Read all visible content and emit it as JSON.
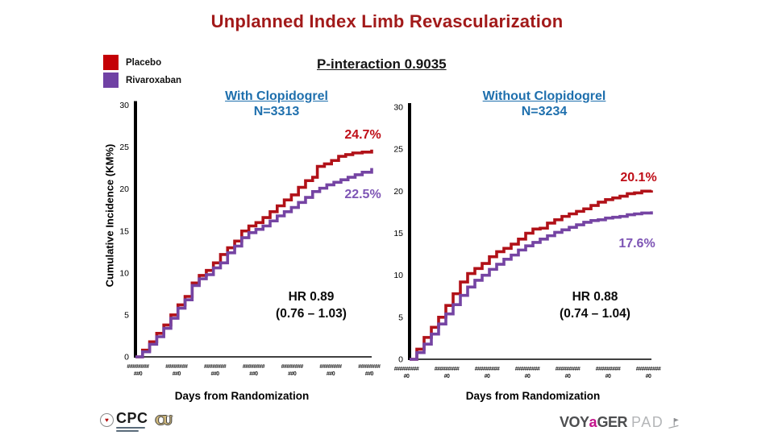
{
  "slide": {
    "title": "Unplanned Index Limb Revascularization",
    "p_interaction": "P-interaction 0.9035"
  },
  "legend": {
    "items": [
      {
        "label": "Placebo",
        "color": "#C40006"
      },
      {
        "label": "Rivaroxaban",
        "color": "#7041A4"
      }
    ]
  },
  "chart_data": [
    {
      "type": "line",
      "title": "With Clopidogrel",
      "subtitle": "N=3313",
      "xlabel": "Days from Randomization",
      "ylabel": "Cumulative Incidence (KM%)",
      "ylim": [
        0,
        30
      ],
      "yticks": [
        0,
        5,
        10,
        15,
        20,
        25,
        30
      ],
      "xticks_placeholder": {
        "count": 7,
        "line1": "########",
        "line2": "##0"
      },
      "x_note": "x tick labels render as number-format placeholders; x values below are relative 0-1 positions along the axis",
      "hr_line1": "HR 0.89",
      "hr_line2": "(0.76 – 1.03)",
      "series": [
        {
          "name": "Placebo",
          "color": "#B11118",
          "end_label": "24.7%",
          "points": [
            [
              0,
              0
            ],
            [
              0.03,
              0.8
            ],
            [
              0.06,
              1.8
            ],
            [
              0.09,
              2.8
            ],
            [
              0.12,
              3.8
            ],
            [
              0.15,
              5.0
            ],
            [
              0.18,
              6.2
            ],
            [
              0.21,
              7.2
            ],
            [
              0.24,
              8.8
            ],
            [
              0.27,
              9.7
            ],
            [
              0.3,
              10.3
            ],
            [
              0.33,
              11.2
            ],
            [
              0.36,
              12.2
            ],
            [
              0.39,
              13.0
            ],
            [
              0.42,
              13.8
            ],
            [
              0.45,
              15.0
            ],
            [
              0.48,
              15.6
            ],
            [
              0.51,
              16.0
            ],
            [
              0.54,
              16.6
            ],
            [
              0.57,
              17.3
            ],
            [
              0.6,
              18.0
            ],
            [
              0.63,
              18.7
            ],
            [
              0.66,
              19.3
            ],
            [
              0.69,
              20.2
            ],
            [
              0.72,
              21.0
            ],
            [
              0.75,
              21.4
            ],
            [
              0.77,
              22.7
            ],
            [
              0.8,
              23.0
            ],
            [
              0.83,
              23.4
            ],
            [
              0.86,
              23.9
            ],
            [
              0.89,
              24.1
            ],
            [
              0.92,
              24.3
            ],
            [
              0.96,
              24.4
            ],
            [
              1.0,
              24.7
            ]
          ]
        },
        {
          "name": "Rivaroxaban",
          "color": "#7544A3",
          "end_label": "22.5%",
          "points": [
            [
              0,
              0
            ],
            [
              0.03,
              0.6
            ],
            [
              0.06,
              1.5
            ],
            [
              0.09,
              2.4
            ],
            [
              0.12,
              3.4
            ],
            [
              0.15,
              4.6
            ],
            [
              0.18,
              5.8
            ],
            [
              0.21,
              6.8
            ],
            [
              0.24,
              8.5
            ],
            [
              0.27,
              9.3
            ],
            [
              0.3,
              9.8
            ],
            [
              0.33,
              10.6
            ],
            [
              0.36,
              11.2
            ],
            [
              0.39,
              12.4
            ],
            [
              0.42,
              13.2
            ],
            [
              0.45,
              14.2
            ],
            [
              0.48,
              14.8
            ],
            [
              0.51,
              15.2
            ],
            [
              0.54,
              15.6
            ],
            [
              0.57,
              16.2
            ],
            [
              0.6,
              16.8
            ],
            [
              0.63,
              17.3
            ],
            [
              0.66,
              17.8
            ],
            [
              0.69,
              18.4
            ],
            [
              0.72,
              19.0
            ],
            [
              0.75,
              19.7
            ],
            [
              0.78,
              20.1
            ],
            [
              0.81,
              20.5
            ],
            [
              0.84,
              20.8
            ],
            [
              0.87,
              21.1
            ],
            [
              0.9,
              21.4
            ],
            [
              0.93,
              21.7
            ],
            [
              0.96,
              22.0
            ],
            [
              1.0,
              22.5
            ]
          ]
        }
      ]
    },
    {
      "type": "line",
      "title": "Without Clopidogrel",
      "subtitle": "N=3234",
      "xlabel": "Days from Randomization",
      "ylabel": "Cumulative Incidence (KM%)",
      "ylim": [
        0,
        30
      ],
      "yticks": [
        0,
        5,
        10,
        15,
        20,
        25,
        30
      ],
      "xticks_placeholder": {
        "count": 7,
        "line1": "#########",
        "line2": "#0"
      },
      "x_note": "x tick labels render as number-format placeholders; x values below are relative 0-1 positions along the axis",
      "hr_line1": "HR 0.88",
      "hr_line2": "(0.74 – 1.04)",
      "series": [
        {
          "name": "Placebo",
          "color": "#B11118",
          "end_label": "20.1%",
          "points": [
            [
              0,
              0
            ],
            [
              0.03,
              1.2
            ],
            [
              0.06,
              2.6
            ],
            [
              0.09,
              3.8
            ],
            [
              0.12,
              5.0
            ],
            [
              0.15,
              6.4
            ],
            [
              0.18,
              7.8
            ],
            [
              0.21,
              9.2
            ],
            [
              0.24,
              10.2
            ],
            [
              0.27,
              10.8
            ],
            [
              0.3,
              11.4
            ],
            [
              0.33,
              12.2
            ],
            [
              0.36,
              12.8
            ],
            [
              0.39,
              13.2
            ],
            [
              0.42,
              13.7
            ],
            [
              0.45,
              14.3
            ],
            [
              0.48,
              15.0
            ],
            [
              0.51,
              15.5
            ],
            [
              0.54,
              15.6
            ],
            [
              0.57,
              16.2
            ],
            [
              0.6,
              16.6
            ],
            [
              0.63,
              17.0
            ],
            [
              0.66,
              17.3
            ],
            [
              0.69,
              17.6
            ],
            [
              0.72,
              17.9
            ],
            [
              0.75,
              18.3
            ],
            [
              0.78,
              18.7
            ],
            [
              0.81,
              19.0
            ],
            [
              0.84,
              19.2
            ],
            [
              0.87,
              19.4
            ],
            [
              0.9,
              19.7
            ],
            [
              0.93,
              19.8
            ],
            [
              0.96,
              20.0
            ],
            [
              1.0,
              20.1
            ]
          ]
        },
        {
          "name": "Rivaroxaban",
          "color": "#7544A3",
          "end_label": "17.6%",
          "points": [
            [
              0,
              0
            ],
            [
              0.03,
              0.8
            ],
            [
              0.06,
              1.8
            ],
            [
              0.09,
              3.0
            ],
            [
              0.12,
              4.2
            ],
            [
              0.15,
              5.4
            ],
            [
              0.18,
              6.5
            ],
            [
              0.21,
              7.6
            ],
            [
              0.24,
              8.6
            ],
            [
              0.27,
              9.4
            ],
            [
              0.3,
              10.0
            ],
            [
              0.33,
              10.7
            ],
            [
              0.36,
              11.3
            ],
            [
              0.39,
              11.9
            ],
            [
              0.42,
              12.4
            ],
            [
              0.45,
              13.0
            ],
            [
              0.48,
              13.5
            ],
            [
              0.51,
              13.9
            ],
            [
              0.54,
              14.3
            ],
            [
              0.57,
              14.7
            ],
            [
              0.6,
              15.1
            ],
            [
              0.63,
              15.4
            ],
            [
              0.66,
              15.7
            ],
            [
              0.69,
              16.0
            ],
            [
              0.72,
              16.3
            ],
            [
              0.75,
              16.5
            ],
            [
              0.78,
              16.6
            ],
            [
              0.81,
              16.8
            ],
            [
              0.84,
              16.9
            ],
            [
              0.87,
              17.0
            ],
            [
              0.9,
              17.2
            ],
            [
              0.93,
              17.3
            ],
            [
              0.96,
              17.4
            ],
            [
              1.0,
              17.6
            ]
          ]
        }
      ]
    }
  ],
  "footer": {
    "cpc_label": "CPC",
    "cu_label": "CU",
    "voyager": {
      "voy": "VOY",
      "a": "a",
      "ger": "GER",
      "pad": "PAD"
    }
  }
}
